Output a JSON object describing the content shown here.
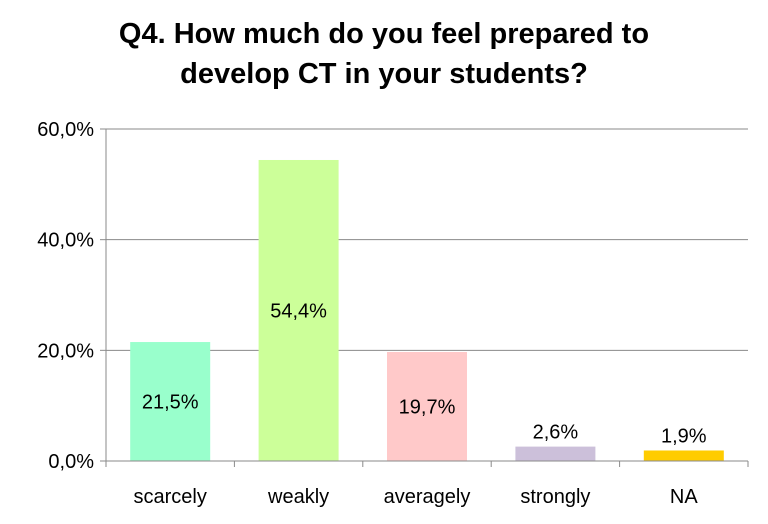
{
  "chart_data": {
    "type": "bar",
    "title_lines": [
      "Q4. How much do you feel prepared to",
      "develop CT in your students?"
    ],
    "categories": [
      "scarcely",
      "weakly",
      "averagely",
      "strongly",
      "NA"
    ],
    "values": [
      21.5,
      54.4,
      19.7,
      2.6,
      1.9
    ],
    "data_labels": [
      "21,5%",
      "54,4%",
      "19,7%",
      "2,6%",
      "1,9%"
    ],
    "label_position": [
      "inside",
      "inside",
      "inside",
      "above",
      "above"
    ],
    "colors": [
      "#99ffcc",
      "#ccff99",
      "#ffc9c9",
      "#ccc0da",
      "#ffcc00"
    ],
    "ylim": [
      0,
      60
    ],
    "yticks": [
      0,
      20,
      40,
      60
    ],
    "ytick_labels": [
      "0,0%",
      "20,0%",
      "40,0%",
      "60,0%"
    ],
    "grid": true,
    "legend": "none"
  }
}
